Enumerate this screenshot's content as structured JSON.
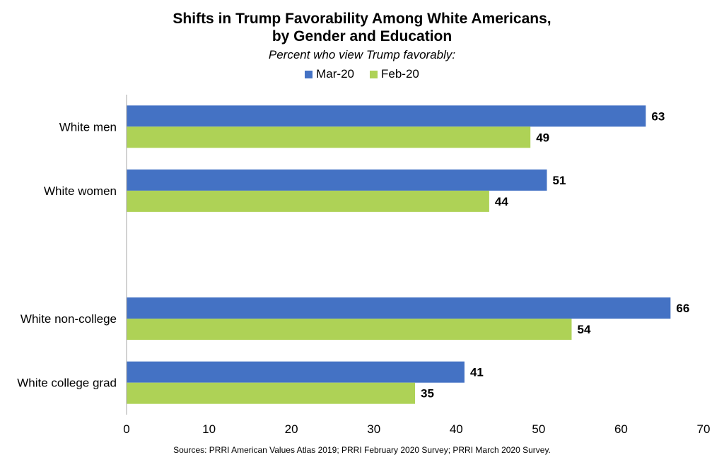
{
  "title_line1": "Shifts in Trump Favorability Among White Americans,",
  "title_line2": "by Gender and Education",
  "subtitle": "Percent who view Trump favorably:",
  "source": "Sources: PRRI American Values Atlas 2019; PRRI February 2020 Survey; PRRI March 2020 Survey.",
  "chart_data": {
    "type": "bar",
    "orientation": "horizontal",
    "categories": [
      "White men",
      "White women",
      "",
      "White non-college",
      "White college grad"
    ],
    "series": [
      {
        "name": "Mar-20",
        "values": [
          63,
          51,
          null,
          66,
          41
        ],
        "color": "#4472C4"
      },
      {
        "name": "Feb-20",
        "values": [
          49,
          44,
          null,
          54,
          35
        ],
        "color": "#AED256"
      }
    ],
    "xlim": [
      0,
      70
    ],
    "xticks": [
      0,
      10,
      20,
      30,
      40,
      50,
      60,
      70
    ],
    "grid": false,
    "legend": "top-center",
    "data_labels": true
  }
}
